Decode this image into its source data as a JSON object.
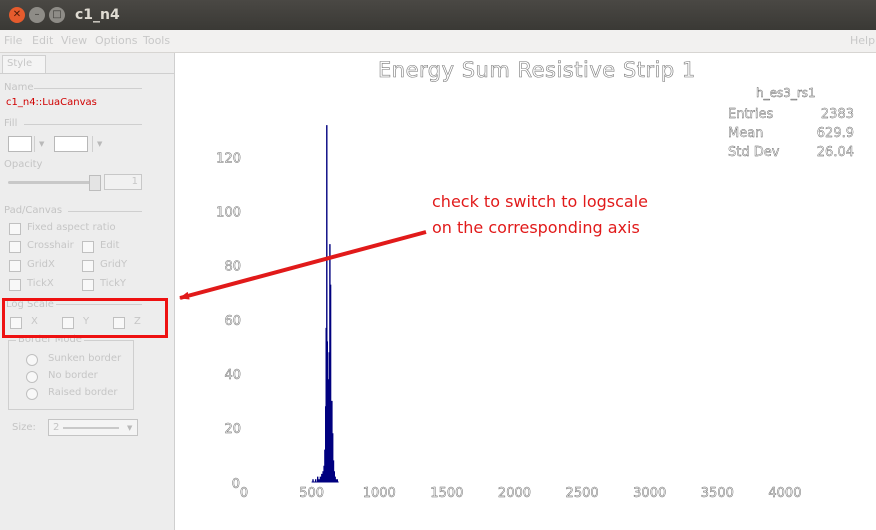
{
  "window": {
    "title": "c1_n4"
  },
  "menubar": {
    "items": [
      "File",
      "Edit",
      "View",
      "Options",
      "Tools"
    ],
    "help": "Help"
  },
  "editor": {
    "tab": "Style",
    "name_label": "Name",
    "name_value": "c1_n4::LuaCanvas",
    "fill_label": "Fill",
    "opacity_label": "Opacity",
    "opacity_value": "1",
    "pad_canvas_label": "Pad/Canvas",
    "fixed_aspect": "Fixed aspect ratio",
    "crosshair": "Crosshair",
    "edit": "Edit",
    "gridx": "GridX",
    "gridy": "GridY",
    "tickx": "TickX",
    "ticky": "TickY",
    "logscale_label": "Log Scale",
    "log_x": "X",
    "log_y": "Y",
    "log_z": "Z",
    "border_mode_label": "Border Mode",
    "sunken": "Sunken border",
    "noborder": "No border",
    "raised": "Raised border",
    "size_label": "Size:",
    "size_value": "2"
  },
  "annotation": {
    "line1": "check to switch to logscale",
    "line2": "on the corresponding axis"
  },
  "chart_data": {
    "type": "histogram",
    "title": "Energy Sum Resistive Strip 1",
    "stats": {
      "name": "h_es3_rs1",
      "entries_label": "Entries",
      "entries": "2383",
      "mean_label": "Mean",
      "mean": "629.9",
      "stddev_label": "Std Dev",
      "stddev": "26.04"
    },
    "xlim": [
      0,
      4200
    ],
    "ylim": [
      0,
      135
    ],
    "x_ticks": [
      "0",
      "500",
      "1000",
      "1500",
      "2000",
      "2500",
      "3000",
      "3500",
      "4000"
    ],
    "y_ticks": [
      "0",
      "20",
      "40",
      "60",
      "80",
      "100",
      "120"
    ],
    "color": "#00007f",
    "bins": [
      {
        "x": 510,
        "y": 1
      },
      {
        "x": 530,
        "y": 1
      },
      {
        "x": 545,
        "y": 2
      },
      {
        "x": 555,
        "y": 1
      },
      {
        "x": 565,
        "y": 2
      },
      {
        "x": 575,
        "y": 3
      },
      {
        "x": 585,
        "y": 4
      },
      {
        "x": 592,
        "y": 6
      },
      {
        "x": 598,
        "y": 12
      },
      {
        "x": 604,
        "y": 28
      },
      {
        "x": 608,
        "y": 57
      },
      {
        "x": 612,
        "y": 132
      },
      {
        "x": 616,
        "y": 52
      },
      {
        "x": 620,
        "y": 38
      },
      {
        "x": 626,
        "y": 25
      },
      {
        "x": 630,
        "y": 48
      },
      {
        "x": 635,
        "y": 88
      },
      {
        "x": 640,
        "y": 73
      },
      {
        "x": 645,
        "y": 25
      },
      {
        "x": 650,
        "y": 30
      },
      {
        "x": 656,
        "y": 18
      },
      {
        "x": 662,
        "y": 8
      },
      {
        "x": 668,
        "y": 4
      },
      {
        "x": 674,
        "y": 2
      },
      {
        "x": 682,
        "y": 1
      },
      {
        "x": 690,
        "y": 1
      }
    ]
  }
}
